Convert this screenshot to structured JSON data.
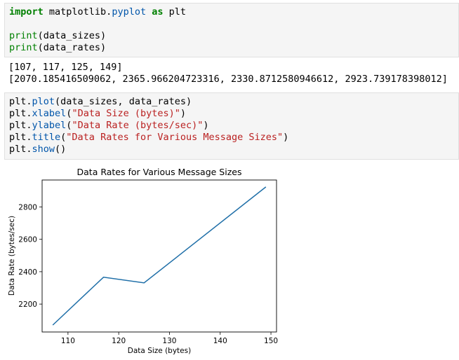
{
  "cell1": {
    "line1": {
      "kw1": "import",
      "mod": " matplotlib.",
      "fn": "pyplot",
      "kw2": " as",
      "alias": " plt"
    },
    "line2": {
      "fn": "print",
      "args": "(data_sizes)"
    },
    "line3": {
      "fn": "print",
      "args": "(data_rates)"
    }
  },
  "output1": {
    "line1": "[107, 117, 125, 149]",
    "line2": "[2070.185416509062, 2365.966204723316, 2330.8712580946612, 2923.739178398012]"
  },
  "cell2": {
    "line1": {
      "obj": "plt.",
      "fn": "plot",
      "args": "(data_sizes, data_rates)"
    },
    "line2": {
      "obj": "plt.",
      "fn": "xlabel",
      "open": "(",
      "str": "\"Data Size (bytes)\"",
      "close": ")"
    },
    "line3": {
      "obj": "plt.",
      "fn": "ylabel",
      "open": "(",
      "str": "\"Data Rate (bytes/sec)\"",
      "close": ")"
    },
    "line4": {
      "obj": "plt.",
      "fn": "title",
      "open": "(",
      "str": "\"Data Rates for Various Message Sizes\"",
      "close": ")"
    },
    "line5": {
      "obj": "plt.",
      "fn": "show",
      "args": "()"
    }
  },
  "chart_data": {
    "type": "line",
    "title": "Data Rates for Various Message Sizes",
    "xlabel": "Data Size (bytes)",
    "ylabel": "Data Rate (bytes/sec)",
    "x": [
      107,
      117,
      125,
      149
    ],
    "series": [
      {
        "values": [
          2070.185416509062,
          2365.966204723316,
          2330.8712580946612,
          2923.739178398012
        ]
      }
    ],
    "xlim": [
      104.9,
      151.1
    ],
    "ylim": [
      2027.5,
      2966.5
    ],
    "xticks": [
      110,
      120,
      130,
      140,
      150
    ],
    "yticks": [
      2200,
      2400,
      2600,
      2800
    ],
    "line_color": "#1f6fa8",
    "grid": false
  }
}
